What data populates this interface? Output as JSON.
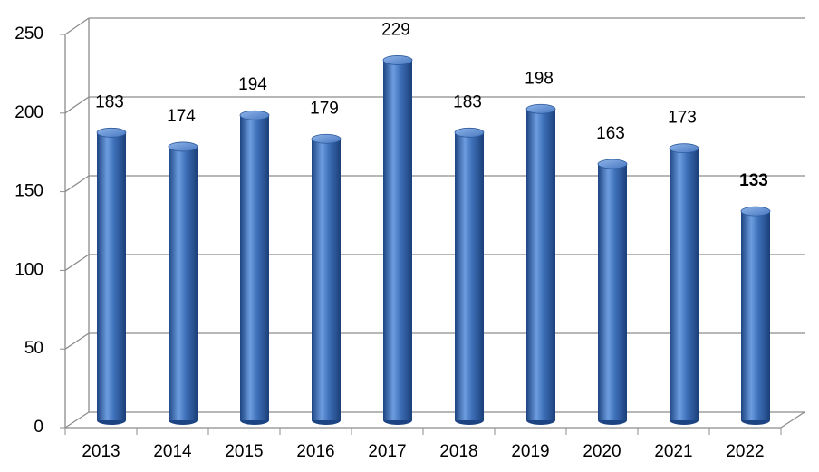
{
  "chart_data": {
    "type": "bar",
    "categories": [
      "2013",
      "2014",
      "2015",
      "2016",
      "2017",
      "2018",
      "2019",
      "2020",
      "2021",
      "2022"
    ],
    "values": [
      183,
      174,
      194,
      179,
      229,
      183,
      198,
      163,
      173,
      133
    ],
    "emphasized": [
      false,
      false,
      false,
      false,
      false,
      false,
      false,
      false,
      false,
      true
    ],
    "color": "#3a6db5",
    "ylim": [
      0,
      250
    ],
    "yticks": [
      0,
      50,
      100,
      150,
      200,
      250
    ],
    "grid": true
  }
}
